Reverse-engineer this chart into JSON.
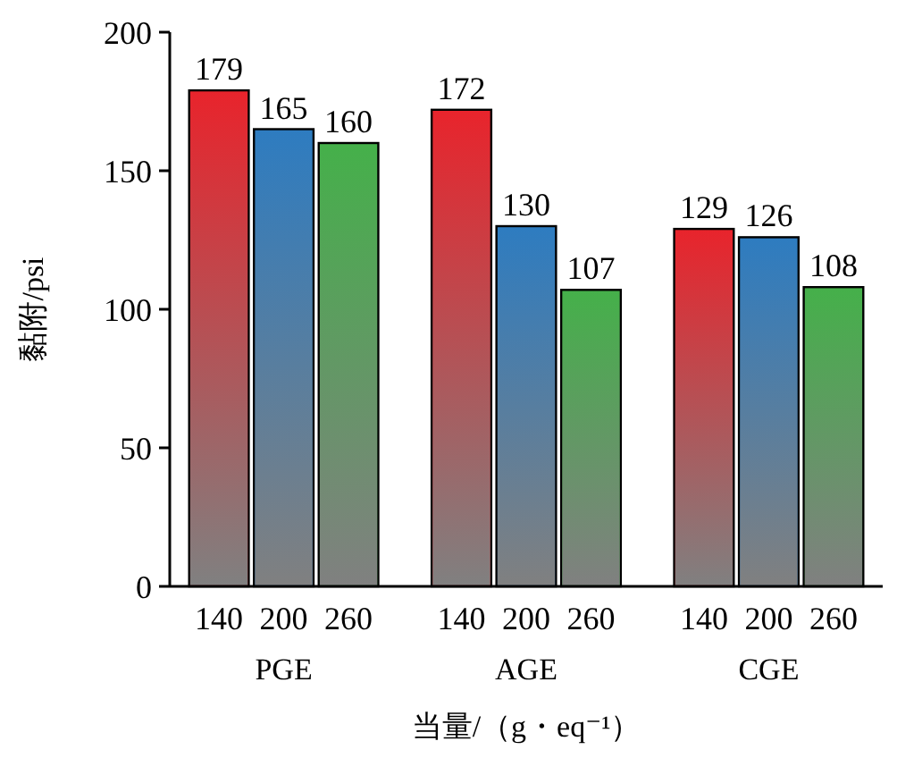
{
  "chart_data": {
    "type": "bar",
    "xlabel": "当量/（g・eq⁻¹）",
    "ylabel": "黏附/psi",
    "categories": [
      "PGE",
      "AGE",
      "CGE"
    ],
    "series": [
      {
        "name": "140",
        "color": "#e8242c",
        "values": [
          179,
          172,
          129
        ]
      },
      {
        "name": "200",
        "color": "#2e7cc0",
        "values": [
          165,
          130,
          126
        ]
      },
      {
        "name": "260",
        "color": "#45b04a",
        "values": [
          160,
          107,
          108
        ]
      }
    ],
    "ylim": [
      0,
      200
    ],
    "yticks": [
      0,
      50,
      100,
      150,
      200
    ],
    "data_labels": true,
    "grid": false
  }
}
